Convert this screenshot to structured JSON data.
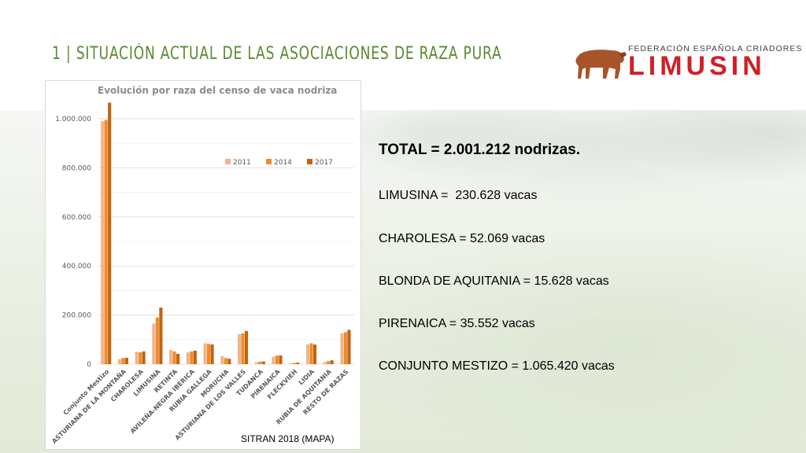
{
  "header": {
    "title": "1 | SITUACIÓN ACTUAL DE LAS ASOCIACIONES DE RAZA PURA",
    "logo_top": "FEDERACIÓN ESPAÑOLA CRIADORES",
    "logo_main": "LIMUSIN"
  },
  "colors": {
    "title": "#5a8a2f",
    "logo_red": "#d11f26",
    "series_2011": "#f2b48b",
    "series_2014": "#ec8c2c",
    "series_2017": "#c4620e"
  },
  "source": "SITRAN 2018 (MAPA)",
  "stats": {
    "total": "TOTAL = 2.001.212 nodrizas.",
    "lines": [
      "LIMUSINA =  230.628 vacas",
      "CHAROLESA = 52.069 vacas",
      "BLONDA DE AQUITANIA = 15.628 vacas",
      "PIRENAICA = 35.552 vacas",
      "CONJUNTO MESTIZO = 1.065.420 vacas"
    ]
  },
  "chart_data": {
    "type": "bar",
    "title": "Evolución por raza del censo de vaca nodriza",
    "ylim": [
      0,
      1000000
    ],
    "yticks": [
      0,
      200000,
      400000,
      600000,
      800000,
      1000000
    ],
    "ytick_labels": [
      "0",
      "200.000",
      "400.000",
      "600.000",
      "800.000",
      "1.000.000"
    ],
    "grid": true,
    "legend_position": "top-right",
    "categories": [
      "Conjunto Mestizo",
      "ASTURIANA DE LA MONTAÑA",
      "CHAROLESA",
      "LIMUSINA",
      "RETINTA",
      "AVILEÑA-NEGRA IBÉRICA",
      "RUBIA GALLEGA",
      "MORUCHA",
      "ASTURIANA DE LOS VALLES",
      "TUDANCA",
      "PIRENAICA",
      "FLECKVIEH",
      "LIDIA",
      "RUBIA DE AQUITANIA",
      "RESTO DE RAZAS"
    ],
    "series": [
      {
        "name": "2011",
        "values": [
          990000,
          20000,
          50000,
          165000,
          58000,
          48000,
          85000,
          32000,
          122000,
          8000,
          30000,
          3000,
          80000,
          8000,
          125000
        ]
      },
      {
        "name": "2014",
        "values": [
          995000,
          25000,
          48000,
          190000,
          52000,
          52000,
          82000,
          25000,
          125000,
          10000,
          35000,
          5000,
          85000,
          12000,
          130000
        ]
      },
      {
        "name": "2017",
        "values": [
          1065420,
          26000,
          52069,
          230628,
          42000,
          55000,
          80000,
          22000,
          135000,
          11000,
          35552,
          6000,
          80000,
          15628,
          140000
        ]
      }
    ]
  }
}
